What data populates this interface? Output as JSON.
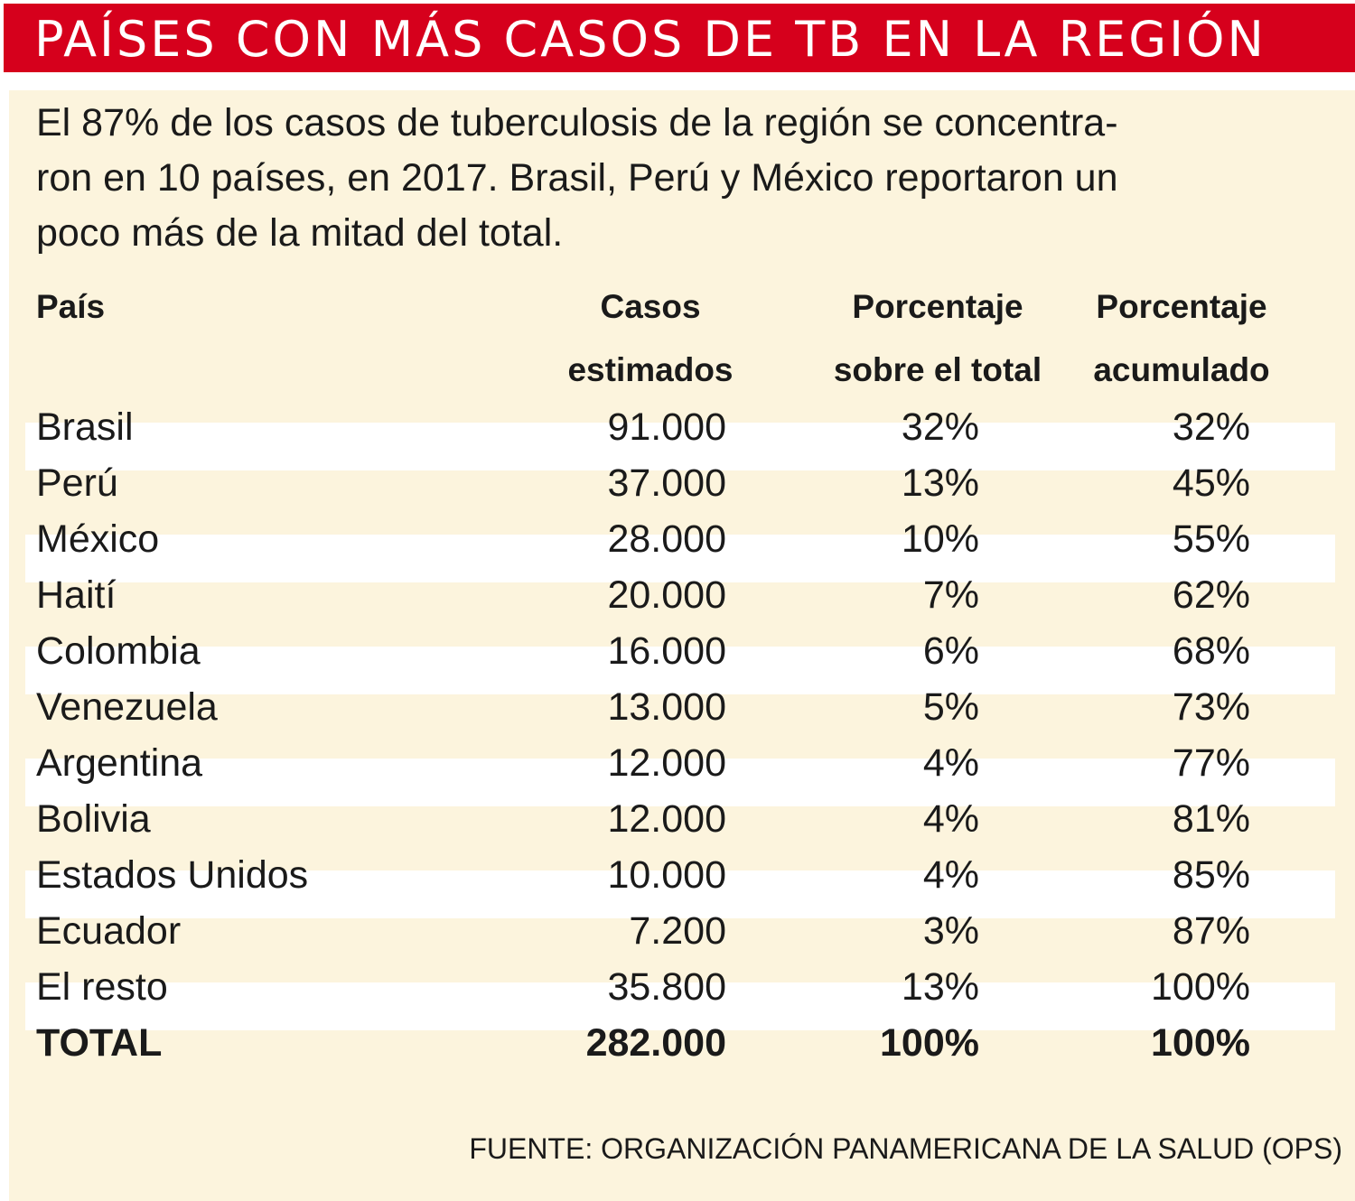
{
  "title": "PAÍSES CON MÁS CASOS DE TB EN LA REGIÓN",
  "intro_lines": [
    "El 87% de los casos de tuberculosis de la región se concentra-",
    "ron en 10 países, en 2017. Brasil, Perú y México reportaron un",
    "poco más de la mitad del total."
  ],
  "table": {
    "headers": {
      "country": "País",
      "cases_line1": "Casos",
      "cases_line2": "estimados",
      "pct_line1": "Porcentaje",
      "pct_line2": "sobre el total",
      "acc_line1": "Porcentaje",
      "acc_line2": "acumulado"
    },
    "rows": [
      {
        "country": "Brasil",
        "cases": "91.000",
        "pct": "32%",
        "acc": "32%"
      },
      {
        "country": "Perú",
        "cases": "37.000",
        "pct": "13%",
        "acc": "45%"
      },
      {
        "country": "México",
        "cases": "28.000",
        "pct": "10%",
        "acc": "55%"
      },
      {
        "country": "Haití",
        "cases": "20.000",
        "pct": "7%",
        "acc": "62%"
      },
      {
        "country": "Colombia",
        "cases": "16.000",
        "pct": "6%",
        "acc": "68%"
      },
      {
        "country": "Venezuela",
        "cases": "13.000",
        "pct": "5%",
        "acc": "73%"
      },
      {
        "country": "Argentina",
        "cases": "12.000",
        "pct": "4%",
        "acc": "77%"
      },
      {
        "country": "Bolivia",
        "cases": "12.000",
        "pct": "4%",
        "acc": "81%"
      },
      {
        "country": "Estados Unidos",
        "cases": "10.000",
        "pct": "4%",
        "acc": "85%"
      },
      {
        "country": "Ecuador",
        "cases": "7.200",
        "pct": "3%",
        "acc": "87%"
      },
      {
        "country": "El resto",
        "cases": "35.800",
        "pct": "13%",
        "acc": "100%"
      }
    ],
    "total": {
      "country": "TOTAL",
      "cases": "282.000",
      "pct": "100%",
      "acc": "100%"
    }
  },
  "source": "FUENTE: ORGANIZACIÓN PANAMERICANA DE LA SALUD (OPS)",
  "colors": {
    "header_red": "#d6001c",
    "panel_cream": "#fcf4dd",
    "stripe_white": "#ffffff",
    "text": "#1a1a1a"
  }
}
